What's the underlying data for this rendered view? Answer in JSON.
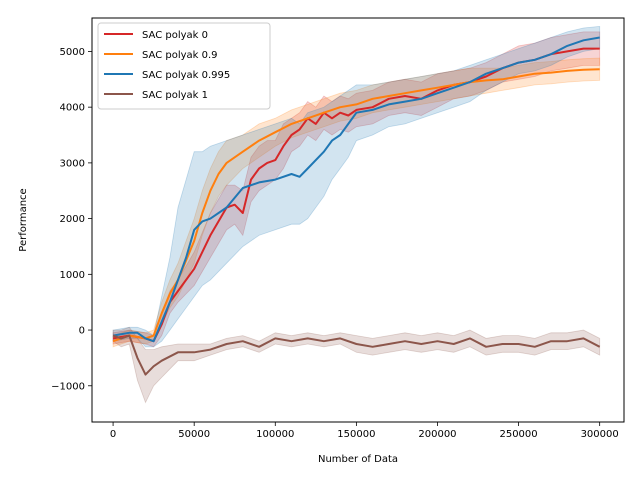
{
  "chart_data": {
    "type": "line",
    "xlabel": "Number of Data",
    "ylabel": "Performance",
    "xlim": [
      -13000,
      315000
    ],
    "ylim": [
      -1650,
      5600
    ],
    "xticks": [
      0,
      50000,
      100000,
      150000,
      200000,
      250000,
      300000
    ],
    "xtick_labels": [
      "0",
      "50000",
      "100000",
      "150000",
      "200000",
      "250000",
      "300000"
    ],
    "yticks": [
      -1000,
      0,
      1000,
      2000,
      3000,
      4000,
      5000
    ],
    "ytick_labels": [
      "−1000",
      "0",
      "1000",
      "2000",
      "3000",
      "4000",
      "5000"
    ],
    "grid": false,
    "legend_position": "top-left",
    "series": [
      {
        "name": "SAC polyak 0",
        "color": "#d62728",
        "x": [
          0,
          10000,
          20000,
          25000,
          30000,
          35000,
          40000,
          50000,
          60000,
          70000,
          75000,
          80000,
          85000,
          90000,
          95000,
          100000,
          105000,
          110000,
          115000,
          120000,
          125000,
          130000,
          135000,
          140000,
          145000,
          150000,
          160000,
          170000,
          180000,
          190000,
          200000,
          210000,
          220000,
          230000,
          240000,
          250000,
          260000,
          270000,
          280000,
          290000,
          300000
        ],
        "y": [
          -150,
          -100,
          -150,
          -200,
          100,
          500,
          700,
          1100,
          1700,
          2200,
          2250,
          2100,
          2700,
          2900,
          3000,
          3050,
          3300,
          3500,
          3600,
          3800,
          3700,
          3900,
          3800,
          3900,
          3850,
          3950,
          4000,
          4150,
          4200,
          4150,
          4300,
          4400,
          4450,
          4550,
          4700,
          4800,
          4850,
          4950,
          5000,
          5050,
          5050
        ],
        "band": [
          [
            -250,
            -50
          ],
          [
            -200,
            0
          ],
          [
            -250,
            -50
          ],
          [
            -300,
            -100
          ],
          [
            -100,
            300
          ],
          [
            300,
            700
          ],
          [
            500,
            900
          ],
          [
            800,
            1400
          ],
          [
            1300,
            2100
          ],
          [
            1800,
            2600
          ],
          [
            1900,
            2600
          ],
          [
            1700,
            2500
          ],
          [
            2300,
            3100
          ],
          [
            2500,
            3300
          ],
          [
            2600,
            3400
          ],
          [
            2700,
            3400
          ],
          [
            2900,
            3700
          ],
          [
            3200,
            3800
          ],
          [
            3300,
            3900
          ],
          [
            3500,
            4100
          ],
          [
            3400,
            4000
          ],
          [
            3600,
            4200
          ],
          [
            3500,
            4100
          ],
          [
            3600,
            4200
          ],
          [
            3550,
            4150
          ],
          [
            3650,
            4250
          ],
          [
            3700,
            4300
          ],
          [
            3850,
            4450
          ],
          [
            3900,
            4500
          ],
          [
            3850,
            4450
          ],
          [
            4000,
            4600
          ],
          [
            4150,
            4650
          ],
          [
            4200,
            4700
          ],
          [
            4300,
            4800
          ],
          [
            4450,
            4950
          ],
          [
            4500,
            5100
          ],
          [
            4550,
            5150
          ],
          [
            4650,
            5250
          ],
          [
            4700,
            5300
          ],
          [
            4750,
            5350
          ],
          [
            4750,
            5350
          ]
        ]
      },
      {
        "name": "SAC polyak 0.9",
        "color": "#ff7f0e",
        "x": [
          0,
          10000,
          20000,
          25000,
          30000,
          35000,
          40000,
          50000,
          55000,
          60000,
          65000,
          70000,
          80000,
          90000,
          100000,
          110000,
          120000,
          130000,
          140000,
          150000,
          160000,
          170000,
          180000,
          190000,
          200000,
          210000,
          220000,
          230000,
          240000,
          250000,
          260000,
          270000,
          280000,
          290000,
          300000
        ],
        "y": [
          -200,
          -100,
          -150,
          -100,
          300,
          650,
          900,
          1600,
          2100,
          2500,
          2800,
          3000,
          3200,
          3400,
          3550,
          3700,
          3800,
          3900,
          4000,
          4050,
          4150,
          4200,
          4250,
          4300,
          4350,
          4400,
          4450,
          4480,
          4500,
          4550,
          4600,
          4620,
          4650,
          4670,
          4680
        ],
        "band": [
          [
            -300,
            -100
          ],
          [
            -200,
            0
          ],
          [
            -250,
            -50
          ],
          [
            -200,
            0
          ],
          [
            100,
            500
          ],
          [
            400,
            900
          ],
          [
            600,
            1200
          ],
          [
            1200,
            2000
          ],
          [
            1700,
            2500
          ],
          [
            2100,
            2900
          ],
          [
            2400,
            3200
          ],
          [
            2600,
            3400
          ],
          [
            2900,
            3500
          ],
          [
            3100,
            3700
          ],
          [
            3300,
            3800
          ],
          [
            3450,
            3950
          ],
          [
            3550,
            4050
          ],
          [
            3650,
            4150
          ],
          [
            3750,
            4250
          ],
          [
            3800,
            4300
          ],
          [
            3900,
            4400
          ],
          [
            3950,
            4450
          ],
          [
            4000,
            4500
          ],
          [
            4050,
            4550
          ],
          [
            4100,
            4600
          ],
          [
            4150,
            4650
          ],
          [
            4200,
            4700
          ],
          [
            4250,
            4700
          ],
          [
            4300,
            4700
          ],
          [
            4350,
            4750
          ],
          [
            4400,
            4800
          ],
          [
            4420,
            4820
          ],
          [
            4450,
            4850
          ],
          [
            4470,
            4870
          ],
          [
            4480,
            4880
          ]
        ]
      },
      {
        "name": "SAC polyak 0.995",
        "color": "#1f77b4",
        "x": [
          0,
          10000,
          15000,
          20000,
          25000,
          30000,
          35000,
          40000,
          45000,
          50000,
          55000,
          60000,
          70000,
          80000,
          90000,
          100000,
          110000,
          115000,
          120000,
          130000,
          135000,
          140000,
          145000,
          150000,
          160000,
          170000,
          180000,
          190000,
          200000,
          210000,
          220000,
          230000,
          240000,
          250000,
          260000,
          270000,
          280000,
          290000,
          300000
        ],
        "y": [
          -100,
          -50,
          -50,
          -150,
          -200,
          150,
          500,
          900,
          1300,
          1800,
          1950,
          2000,
          2200,
          2550,
          2650,
          2700,
          2800,
          2750,
          2900,
          3200,
          3400,
          3500,
          3700,
          3900,
          3950,
          4050,
          4100,
          4150,
          4250,
          4350,
          4450,
          4600,
          4700,
          4800,
          4850,
          4950,
          5100,
          5200,
          5250
        ],
        "band": [
          [
            -200,
            0
          ],
          [
            -150,
            50
          ],
          [
            -150,
            50
          ],
          [
            -300,
            0
          ],
          [
            -300,
            -100
          ],
          [
            -200,
            600
          ],
          [
            0,
            1300
          ],
          [
            200,
            2200
          ],
          [
            400,
            2700
          ],
          [
            600,
            3200
          ],
          [
            800,
            3200
          ],
          [
            900,
            3300
          ],
          [
            1200,
            3400
          ],
          [
            1500,
            3500
          ],
          [
            1700,
            3600
          ],
          [
            1800,
            3700
          ],
          [
            1900,
            3800
          ],
          [
            1900,
            3700
          ],
          [
            2000,
            3900
          ],
          [
            2400,
            4000
          ],
          [
            2700,
            4100
          ],
          [
            2900,
            4200
          ],
          [
            3100,
            4300
          ],
          [
            3400,
            4400
          ],
          [
            3500,
            4400
          ],
          [
            3650,
            4450
          ],
          [
            3700,
            4500
          ],
          [
            3800,
            4550
          ],
          [
            3900,
            4600
          ],
          [
            4000,
            4650
          ],
          [
            4100,
            4750
          ],
          [
            4300,
            4850
          ],
          [
            4450,
            4950
          ],
          [
            4600,
            5050
          ],
          [
            4650,
            5150
          ],
          [
            4750,
            5250
          ],
          [
            4900,
            5350
          ],
          [
            5000,
            5420
          ],
          [
            5050,
            5450
          ]
        ]
      },
      {
        "name": "SAC polyak 1",
        "color": "#8c564b",
        "x": [
          0,
          5000,
          10000,
          15000,
          20000,
          25000,
          30000,
          40000,
          50000,
          60000,
          70000,
          80000,
          90000,
          100000,
          110000,
          120000,
          130000,
          140000,
          150000,
          160000,
          170000,
          180000,
          190000,
          200000,
          210000,
          220000,
          230000,
          240000,
          250000,
          260000,
          270000,
          280000,
          290000,
          300000
        ],
        "y": [
          -100,
          -150,
          -100,
          -500,
          -800,
          -650,
          -550,
          -400,
          -400,
          -350,
          -250,
          -200,
          -300,
          -150,
          -200,
          -150,
          -200,
          -150,
          -250,
          -300,
          -250,
          -200,
          -250,
          -200,
          -250,
          -150,
          -300,
          -250,
          -250,
          -300,
          -200,
          -200,
          -150,
          -300
        ],
        "band": [
          [
            -200,
            0
          ],
          [
            -300,
            0
          ],
          [
            -250,
            50
          ],
          [
            -900,
            -150
          ],
          [
            -1300,
            -350
          ],
          [
            -1000,
            -350
          ],
          [
            -850,
            -300
          ],
          [
            -550,
            -250
          ],
          [
            -550,
            -250
          ],
          [
            -450,
            -250
          ],
          [
            -350,
            -150
          ],
          [
            -300,
            -100
          ],
          [
            -400,
            -200
          ],
          [
            -250,
            -50
          ],
          [
            -300,
            -100
          ],
          [
            -250,
            -50
          ],
          [
            -300,
            -100
          ],
          [
            -250,
            -50
          ],
          [
            -400,
            -100
          ],
          [
            -450,
            -150
          ],
          [
            -400,
            -100
          ],
          [
            -350,
            -50
          ],
          [
            -400,
            -100
          ],
          [
            -350,
            -50
          ],
          [
            -400,
            -100
          ],
          [
            -300,
            0
          ],
          [
            -450,
            -150
          ],
          [
            -400,
            -100
          ],
          [
            -400,
            -100
          ],
          [
            -450,
            -150
          ],
          [
            -350,
            -50
          ],
          [
            -350,
            -50
          ],
          [
            -300,
            0
          ],
          [
            -450,
            -150
          ]
        ]
      }
    ]
  }
}
